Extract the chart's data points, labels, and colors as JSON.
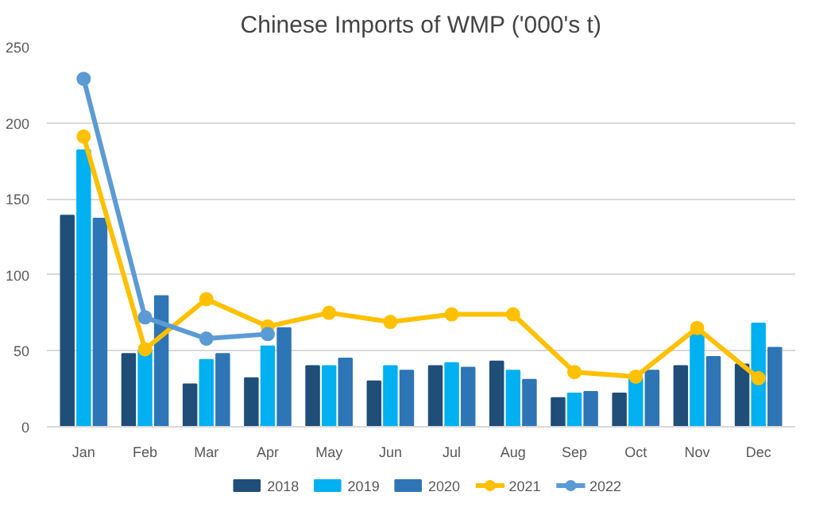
{
  "chart_data": {
    "type": "bar",
    "title": "Chinese Imports of WMP ('000's t)",
    "categories": [
      "Jan",
      "Feb",
      "Mar",
      "Apr",
      "May",
      "Jun",
      "Jul",
      "Aug",
      "Sep",
      "Oct",
      "Nov",
      "Dec"
    ],
    "series": [
      {
        "name": "2018",
        "color": "#1f4e79",
        "values": [
          139,
          48,
          28,
          32,
          40,
          30,
          40,
          43,
          19,
          22,
          40,
          41
        ]
      },
      {
        "name": "2019",
        "color": "#00b0f0",
        "values": [
          182,
          50,
          44,
          53,
          40,
          40,
          42,
          37,
          22,
          32,
          61,
          68
        ]
      },
      {
        "name": "2020",
        "color": "#2e75b6",
        "values": [
          137,
          86,
          48,
          65,
          45,
          37,
          39,
          31,
          23,
          37,
          46,
          52
        ]
      },
      {
        "name": "2021",
        "type": "line",
        "color": "#ffc000",
        "values": [
          191,
          51,
          84,
          66,
          75,
          69,
          74,
          74,
          36,
          33,
          65,
          32
        ]
      },
      {
        "name": "2022",
        "type": "line",
        "color": "#5b9bd5",
        "values": [
          229,
          72,
          58,
          61,
          null,
          null,
          null,
          null,
          null,
          null,
          null,
          null
        ]
      }
    ],
    "ylim": [
      0,
      250
    ],
    "yticks": [
      0,
      50,
      100,
      150,
      200,
      250
    ],
    "grid": "y",
    "legend": "bottom",
    "marker": "circle"
  }
}
